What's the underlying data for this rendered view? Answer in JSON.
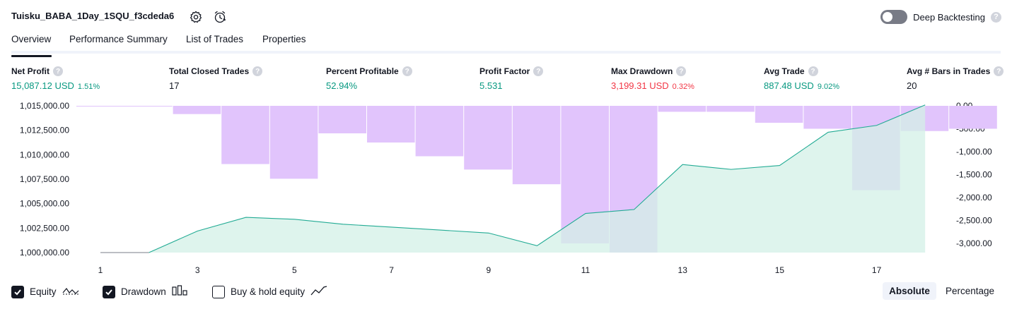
{
  "header": {
    "title": "Tuisku_BABA_1Day_1SQU_f3cdeda6",
    "settings_icon": "gear-icon",
    "alarm_icon": "alarm-clock-icon",
    "deep_backtesting_label": "Deep Backtesting",
    "deep_backtesting_enabled": false,
    "help_glyph": "?"
  },
  "tabs": [
    {
      "label": "Overview",
      "active": true
    },
    {
      "label": "Performance Summary",
      "active": false
    },
    {
      "label": "List of Trades",
      "active": false
    },
    {
      "label": "Properties",
      "active": false
    }
  ],
  "metrics": [
    {
      "label": "Net Profit",
      "value": "15,087.12 USD",
      "pct": "1.51%",
      "tone": "green"
    },
    {
      "label": "Total Closed Trades",
      "value": "17",
      "pct": "",
      "tone": "dark"
    },
    {
      "label": "Percent Profitable",
      "value": "52.94%",
      "pct": "",
      "tone": "green"
    },
    {
      "label": "Profit Factor",
      "value": "5.531",
      "pct": "",
      "tone": "green"
    },
    {
      "label": "Max Drawdown",
      "value": "3,199.31 USD",
      "pct": "0.32%",
      "tone": "red"
    },
    {
      "label": "Avg Trade",
      "value": "887.48 USD",
      "pct": "9.02%",
      "tone": "green"
    },
    {
      "label": "Avg # Bars in Trades",
      "value": "20",
      "pct": "",
      "tone": "dark"
    }
  ],
  "chart_data": {
    "type": "bar",
    "x_ticks": [
      "1",
      "3",
      "5",
      "7",
      "9",
      "11",
      "13",
      "15",
      "17"
    ],
    "x": [
      1,
      2,
      3,
      4,
      5,
      6,
      7,
      8,
      9,
      10,
      11,
      12,
      13,
      14,
      15,
      16,
      17,
      18
    ],
    "left_axis": {
      "ticks": [
        "1,015,000.00",
        "1,012,500.00",
        "1,010,000.00",
        "1,007,500.00",
        "1,005,000.00",
        "1,002,500.00",
        "1,000,000.00"
      ],
      "range": [
        1000000,
        1015000
      ]
    },
    "right_axis": {
      "ticks": [
        "0.00",
        "-500.00",
        "-1,000.00",
        "-1,500.00",
        "-2,000.00",
        "-2,500.00",
        "-3,000.00"
      ],
      "range": [
        -3200,
        0
      ]
    },
    "series": [
      {
        "name": "Drawdown",
        "type": "bar",
        "color": "#e1c4fc",
        "values": [
          0,
          -180,
          -1270,
          -1590,
          -600,
          -800,
          -1100,
          -1390,
          -1710,
          -3000,
          -3199,
          -130,
          -130,
          -370,
          -500,
          -1840,
          -550,
          -500
        ]
      },
      {
        "name": "Equity",
        "type": "area",
        "color": "#22ab94",
        "fill": "#d3f0e7",
        "values": [
          1000000,
          1000000,
          1002200,
          1003600,
          1003400,
          1002900,
          1002600,
          1002300,
          1002000,
          1000700,
          1004000,
          1004400,
          1009000,
          1008500,
          1008900,
          1012300,
          1013000,
          1015087
        ]
      }
    ],
    "grid": false
  },
  "footer": {
    "options": [
      {
        "label": "Equity",
        "checked": true,
        "icon": "equity-line-icon"
      },
      {
        "label": "Drawdown",
        "checked": true,
        "icon": "drawdown-bars-icon"
      },
      {
        "label": "Buy & hold equity",
        "checked": false,
        "icon": "trend-line-icon"
      }
    ],
    "modes": [
      {
        "label": "Absolute",
        "active": true
      },
      {
        "label": "Percentage",
        "active": false
      }
    ]
  }
}
